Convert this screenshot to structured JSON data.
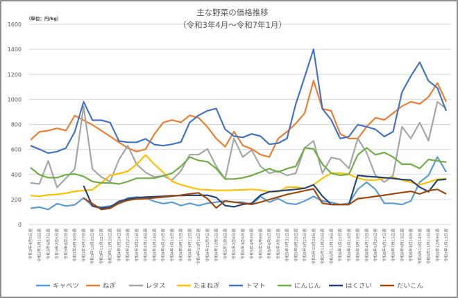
{
  "chart_data": {
    "type": "line",
    "title": "主な野菜の価格推移",
    "subtitle": "（令和3年4月～令和7年1月）",
    "unit_label": "（単位：円/kg）",
    "xlabel": "",
    "ylabel": "",
    "ylim": [
      0,
      1600
    ],
    "yticks": [
      0,
      200,
      400,
      600,
      800,
      1000,
      1200,
      1400,
      1600
    ],
    "grid": true,
    "legend_position": "bottom",
    "categories": [
      "令和3年4月5日週",
      "令和3年5月10日週",
      "令和3年6月7日週",
      "令和3年7月5日週",
      "令和3年8月2日週",
      "令和3年8月30日週",
      "令和3年9月27日週",
      "令和3年10月25日週",
      "令和3年11月22日週",
      "令和3年12月20日週",
      "令和4年1月24日週",
      "令和4年2月21日週",
      "令和4年3月21日週",
      "令和4年4月18日週",
      "令和4年5月23日週",
      "令和4年6月20日週",
      "令和4年7月18日週",
      "令和4年8月15日週",
      "令和4年9月12日週",
      "令和4年10月10日週",
      "令和4年11月7日週",
      "令和4年12月5日週",
      "令和5年1月9日週",
      "令和5年2月6日週",
      "令和5年3月6日週",
      "令和5年4月3日週",
      "令和5年5月8日週",
      "令和5年6月5日週",
      "令和5年7月3日週",
      "令和5年7月31日週",
      "令和5年8月28日週",
      "令和5年9月25日週",
      "令和5年10月23日週",
      "令和5年11月20日週",
      "令和5年12月18日週",
      "令和6年1月22日週",
      "令和6年2月19日週",
      "令和6年3月18日週",
      "令和6年4月15日週",
      "令和6年5月20日週",
      "令和6年6月17日週",
      "令和6年7月15日週",
      "令和6年8月19日週",
      "令和6年9月16日週",
      "令和6年10月14日週",
      "令和6年11月11日週",
      "令和6年12月9日週",
      "令和7年1月13日週"
    ],
    "series": [
      {
        "name": "キャベツ",
        "color": "#5B9BD5",
        "values": [
          130,
          139,
          120,
          167,
          148,
          157,
          213,
          148,
          139,
          148,
          167,
          213,
          219,
          213,
          185,
          167,
          179,
          151,
          170,
          151,
          170,
          179,
          188,
          179,
          179,
          161,
          225,
          179,
          207,
          170,
          161,
          188,
          225,
          188,
          177,
          160,
          170,
          281,
          338,
          281,
          170,
          170,
          160,
          188,
          338,
          393,
          540,
          420
        ]
      },
      {
        "name": "ねぎ",
        "color": "#ED7D31",
        "values": [
          676,
          741,
          750,
          769,
          750,
          870,
          833,
          796,
          750,
          704,
          657,
          611,
          583,
          602,
          722,
          815,
          835,
          816,
          872,
          853,
          779,
          687,
          622,
          742,
          632,
          604,
          558,
          539,
          687,
          742,
          807,
          890,
          1150,
          925,
          908,
          725,
          687,
          687,
          781,
          853,
          836,
          890,
          945,
          981,
          964,
          1019,
          1130,
          980
        ]
      },
      {
        "name": "レタス",
        "color": "#A5A5A5",
        "values": [
          333,
          324,
          509,
          296,
          370,
          444,
          944,
          444,
          380,
          343,
          518,
          630,
          481,
          417,
          380,
          389,
          355,
          428,
          558,
          558,
          604,
          465,
          364,
          687,
          539,
          595,
          465,
          410,
          428,
          392,
          410,
          613,
          669,
          410,
          536,
          520,
          448,
          687,
          576,
          393,
          338,
          393,
          781,
          687,
          814,
          670,
          981,
          925
        ]
      },
      {
        "name": "たまねぎ",
        "color": "#FFC000",
        "values": [
          231,
          226,
          237,
          241,
          250,
          265,
          272,
          278,
          333,
          393,
          407,
          426,
          481,
          556,
          481,
          417,
          345,
          318,
          299,
          281,
          277,
          273,
          273,
          275,
          277,
          281,
          275,
          262,
          262,
          299,
          299,
          290,
          318,
          370,
          410,
          410,
          402,
          370,
          355,
          355,
          370,
          378,
          355,
          338,
          318,
          338,
          362,
          367
        ]
      },
      {
        "name": "トマト",
        "color": "#4472C4",
        "values": [
          630,
          602,
          570,
          583,
          611,
          740,
          981,
          833,
          833,
          815,
          667,
          657,
          657,
          685,
          639,
          630,
          641,
          659,
          816,
          872,
          909,
          927,
          761,
          706,
          696,
          724,
          706,
          641,
          650,
          687,
          964,
          1180,
          1400,
          925,
          836,
          687,
          703,
          798,
          781,
          760,
          703,
          742,
          1058,
          1186,
          1296,
          1147,
          1091,
          908
        ]
      },
      {
        "name": "にんじん",
        "color": "#70AD47",
        "values": [
          454,
          398,
          374,
          374,
          398,
          404,
          385,
          343,
          333,
          333,
          324,
          343,
          370,
          370,
          370,
          389,
          410,
          465,
          539,
          512,
          502,
          447,
          364,
          364,
          373,
          392,
          419,
          447,
          419,
          447,
          465,
          613,
          604,
          482,
          410,
          393,
          402,
          557,
          613,
          557,
          576,
          539,
          482,
          482,
          448,
          520,
          508,
          499
        ]
      },
      {
        "name": "はくさい",
        "color": "#264478",
        "values": [
          null,
          null,
          null,
          null,
          null,
          null,
          310,
          148,
          130,
          139,
          185,
          204,
          213,
          219,
          222,
          226,
          231,
          232,
          233,
          233,
          234,
          216,
          151,
          142,
          161,
          170,
          234,
          262,
          268,
          274,
          281,
          290,
          318,
          227,
          160,
          160,
          160,
          393,
          385,
          380,
          375,
          368,
          360,
          355,
          299,
          262,
          355,
          362
        ]
      },
      {
        "name": "だいこん",
        "color": "#9E480E",
        "values": [
          null,
          null,
          null,
          null,
          null,
          null,
          210,
          167,
          120,
          130,
          170,
          194,
          204,
          207,
          213,
          219,
          226,
          235,
          245,
          253,
          207,
          133,
          188,
          179,
          170,
          161,
          179,
          200,
          220,
          240,
          255,
          270,
          285,
          170,
          160,
          160,
          160,
          207,
          215,
          225,
          235,
          245,
          255,
          265,
          244,
          270,
          281,
          244
        ]
      }
    ]
  }
}
